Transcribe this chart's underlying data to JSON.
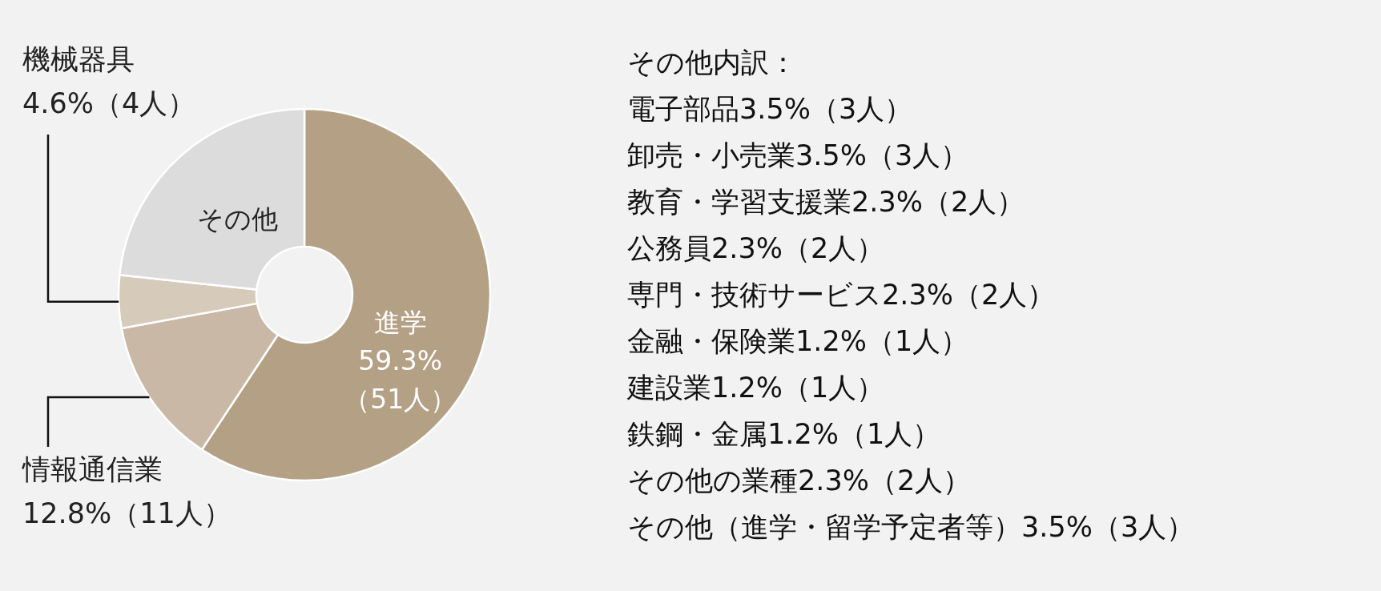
{
  "chart_data": {
    "type": "donut",
    "categories": [
      "進学",
      "情報通信業",
      "機械器具",
      "その他"
    ],
    "values": [
      59.3,
      12.8,
      4.6,
      23.3
    ],
    "colors": [
      "#b4a085",
      "#c9b8a6",
      "#d6cabb",
      "#dcdcdc"
    ],
    "value_labels": [
      "59.3%（51人）",
      "12.8%（11人）",
      "4.6%（4人）",
      null
    ],
    "annotations": [
      "その他内訳：",
      "電子部品3.5%（3人）",
      "卸売・小売業3.5%（3人）",
      "教育・学習支援業2.3%（2人）",
      "公務員2.3%（2人）",
      "専門・技術サービス2.3%（2人）",
      "金融・保険業1.2%（1人）",
      "建設業1.2%（1人）",
      "鉄鋼・金属1.2%（1人）",
      "その他の業種2.3%（2人）",
      "その他（進学・留学予定者等）3.5%（3人）"
    ]
  }
}
